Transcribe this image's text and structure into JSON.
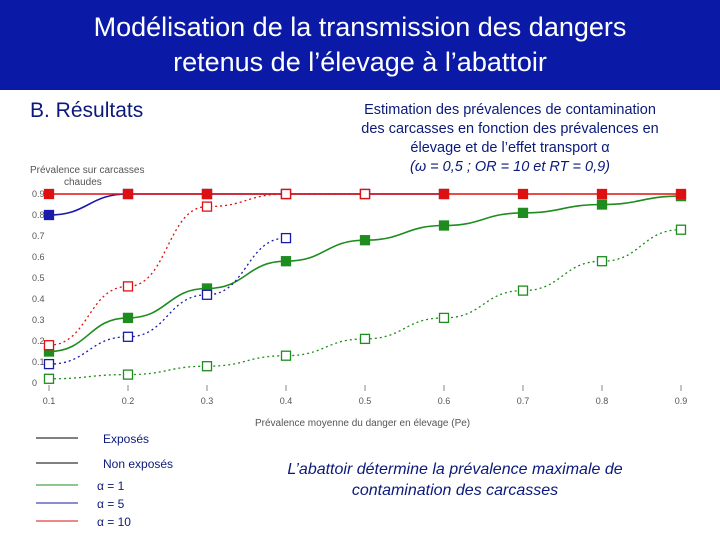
{
  "header": {
    "title_line1": "Modélisation de la transmission des dangers",
    "title_line2": "retenus de l’élevage à l’abattoir",
    "bar_color": "#0a1aa6"
  },
  "section_title": "B. Résultats",
  "subtitle": {
    "line1": "Estimation des prévalences de contamination",
    "line2": "des carcasses en fonction des prévalences en",
    "line3": "élevage et de l’effet transport α",
    "line4": "(ω = 0,5 ; OR = 10 et RT = 0,9)"
  },
  "conclusion": {
    "line1": "L’abattoir détermine la prévalence maximale de",
    "line2": "contamination des carcasses"
  },
  "legend": {
    "exposed": "Exposés",
    "unexposed": "Non exposés",
    "alpha1": "α = 1",
    "alpha5": "α = 5",
    "alpha10": "α = 10"
  },
  "chart_data": {
    "type": "line",
    "ylabel": "Prévalence sur carcasses chaudes",
    "xlabel": "Prévalence moyenne du danger en élevage (Pe)",
    "x_ticks": [
      "0.1",
      "0.2",
      "0.3",
      "0.4",
      "0.5",
      "0.6",
      "0.7",
      "0.8",
      "0.9"
    ],
    "y_ticks": [
      "0",
      "0.1",
      "0.2",
      "0.3",
      "0.4",
      "0.5",
      "0.6",
      "0.7",
      "0.8",
      "0.9"
    ],
    "xlim": [
      0.1,
      0.9
    ],
    "ylim": [
      0,
      0.9
    ],
    "grid": false,
    "series": [
      {
        "name": "Exposés, α = 1",
        "color": "#1e8c1e",
        "marker": "filled",
        "style": "solid",
        "x": [
          0.1,
          0.2,
          0.3,
          0.4,
          0.5,
          0.6,
          0.7,
          0.8,
          0.9
        ],
        "y": [
          0.15,
          0.31,
          0.45,
          0.58,
          0.68,
          0.75,
          0.81,
          0.85,
          0.89
        ]
      },
      {
        "name": "Non exposés, α = 1",
        "color": "#1e8c1e",
        "marker": "open",
        "style": "dotted",
        "x": [
          0.1,
          0.2,
          0.3,
          0.4,
          0.5,
          0.6,
          0.7,
          0.8,
          0.9
        ],
        "y": [
          0.02,
          0.04,
          0.08,
          0.13,
          0.21,
          0.31,
          0.44,
          0.58,
          0.73
        ]
      },
      {
        "name": "Exposés, α = 5",
        "color": "#1a1aaa",
        "marker": "filled",
        "style": "solid",
        "x": [
          0.1,
          0.2,
          0.3,
          0.4,
          0.5,
          0.6
        ],
        "y": [
          0.8,
          0.9,
          0.9,
          0.9,
          0.9,
          0.9
        ]
      },
      {
        "name": "Non exposés, α = 5",
        "color": "#1a1aaa",
        "marker": "open",
        "style": "dotted",
        "x": [
          0.1,
          0.2,
          0.3,
          0.4
        ],
        "y": [
          0.09,
          0.22,
          0.42,
          0.69
        ]
      },
      {
        "name": "Exposés, α = 10",
        "color": "#dd1111",
        "marker": "filled",
        "style": "solid",
        "x": [
          0.1,
          0.2,
          0.3,
          0.4,
          0.5,
          0.6,
          0.7,
          0.8,
          0.9
        ],
        "y": [
          0.9,
          0.9,
          0.9,
          0.9,
          0.9,
          0.9,
          0.9,
          0.9,
          0.9
        ]
      },
      {
        "name": "Non exposés, α = 10",
        "color": "#dd1111",
        "marker": "open",
        "style": "dotted",
        "x": [
          0.1,
          0.2,
          0.3,
          0.4,
          0.5
        ],
        "y": [
          0.18,
          0.46,
          0.84,
          0.9,
          0.9
        ]
      }
    ]
  }
}
